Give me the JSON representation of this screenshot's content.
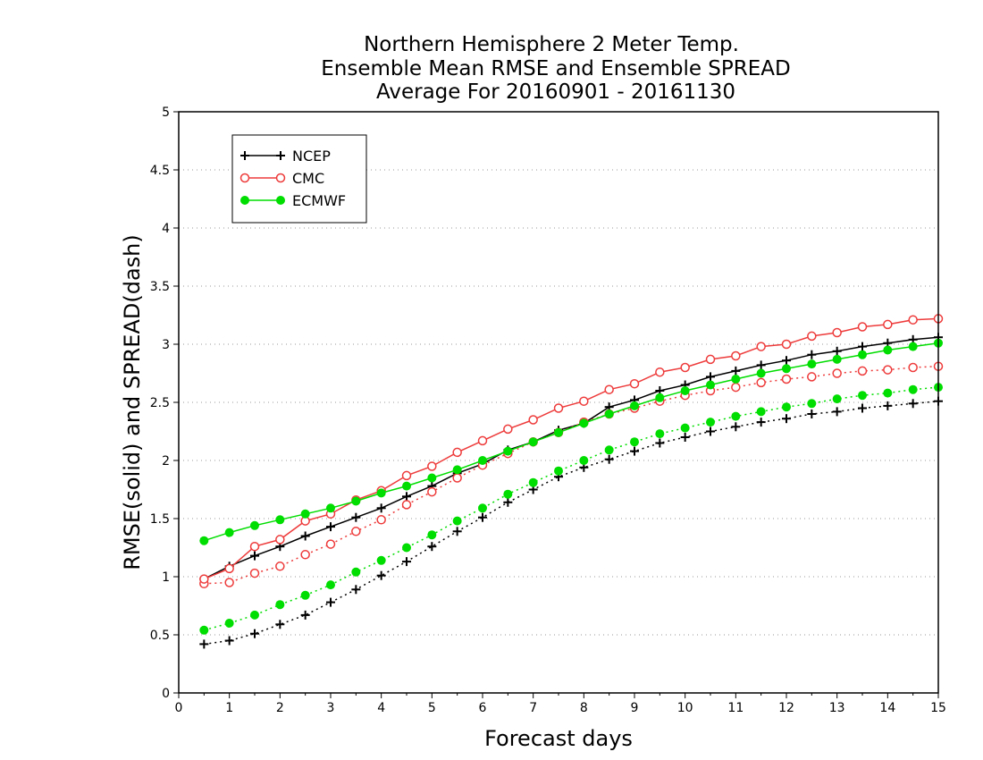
{
  "chart_data": {
    "type": "line",
    "title_lines": [
      "Northern Hemisphere 2 Meter Temp.",
      "Ensemble Mean RMSE and Ensemble SPREAD",
      "Average For 20160901 - 20161130"
    ],
    "xlabel": "Forecast days",
    "ylabel": "RMSE(solid) and SPREAD(dash)",
    "xlim": [
      0,
      15
    ],
    "ylim": [
      0,
      5
    ],
    "xticks": [
      "0",
      "1",
      "2",
      "3",
      "4",
      "5",
      "6",
      "7",
      "8",
      "9",
      "10",
      "11",
      "12",
      "13",
      "14",
      "15"
    ],
    "yticks": [
      "0",
      "0.5",
      "1",
      "1.5",
      "2",
      "2.5",
      "3",
      "3.5",
      "4",
      "4.5",
      "5"
    ],
    "grid": "horizontal dotted",
    "legend_position": "top-left",
    "x": [
      0.5,
      1,
      1.5,
      2,
      2.5,
      3,
      3.5,
      4,
      4.5,
      5,
      5.5,
      6,
      6.5,
      7,
      7.5,
      8,
      8.5,
      9,
      9.5,
      10,
      10.5,
      11,
      11.5,
      12,
      12.5,
      13,
      13.5,
      14,
      14.5,
      15
    ],
    "series": [
      {
        "name": "NCEP",
        "color": "#000000",
        "marker": "plus",
        "rmse": [
          0.98,
          1.09,
          1.18,
          1.26,
          1.35,
          1.43,
          1.51,
          1.59,
          1.69,
          1.78,
          1.89,
          1.97,
          2.09,
          2.16,
          2.26,
          2.32,
          2.46,
          2.52,
          2.6,
          2.65,
          2.72,
          2.77,
          2.82,
          2.86,
          2.91,
          2.94,
          2.98,
          3.01,
          3.04,
          3.06
        ],
        "spread": [
          0.42,
          0.45,
          0.51,
          0.59,
          0.67,
          0.78,
          0.89,
          1.01,
          1.13,
          1.26,
          1.39,
          1.51,
          1.64,
          1.75,
          1.86,
          1.94,
          2.01,
          2.08,
          2.15,
          2.2,
          2.25,
          2.29,
          2.33,
          2.36,
          2.4,
          2.42,
          2.45,
          2.47,
          2.49,
          2.51
        ]
      },
      {
        "name": "CMC",
        "color": "#ee3b3b",
        "marker": "open-circle",
        "rmse": [
          0.98,
          1.07,
          1.26,
          1.32,
          1.48,
          1.54,
          1.66,
          1.74,
          1.87,
          1.95,
          2.07,
          2.17,
          2.27,
          2.35,
          2.45,
          2.51,
          2.61,
          2.66,
          2.76,
          2.8,
          2.87,
          2.9,
          2.98,
          3.0,
          3.07,
          3.1,
          3.15,
          3.17,
          3.21,
          3.22
        ],
        "spread": [
          0.94,
          0.95,
          1.03,
          1.09,
          1.19,
          1.28,
          1.39,
          1.49,
          1.62,
          1.73,
          1.85,
          1.96,
          2.06,
          2.16,
          2.24,
          2.33,
          2.4,
          2.45,
          2.51,
          2.56,
          2.6,
          2.63,
          2.67,
          2.7,
          2.72,
          2.75,
          2.77,
          2.78,
          2.8,
          2.81
        ]
      },
      {
        "name": "ECMWF",
        "color": "#00dd00",
        "marker": "filled-circle",
        "rmse": [
          1.31,
          1.38,
          1.44,
          1.49,
          1.54,
          1.59,
          1.65,
          1.72,
          1.78,
          1.85,
          1.92,
          2.0,
          2.08,
          2.16,
          2.24,
          2.32,
          2.4,
          2.47,
          2.54,
          2.6,
          2.65,
          2.7,
          2.75,
          2.79,
          2.83,
          2.87,
          2.91,
          2.95,
          2.98,
          3.01
        ],
        "spread": [
          0.54,
          0.6,
          0.67,
          0.76,
          0.84,
          0.93,
          1.04,
          1.14,
          1.25,
          1.36,
          1.48,
          1.59,
          1.71,
          1.81,
          1.91,
          2.0,
          2.09,
          2.16,
          2.23,
          2.28,
          2.33,
          2.38,
          2.42,
          2.46,
          2.49,
          2.53,
          2.56,
          2.58,
          2.61,
          2.63
        ]
      }
    ]
  }
}
